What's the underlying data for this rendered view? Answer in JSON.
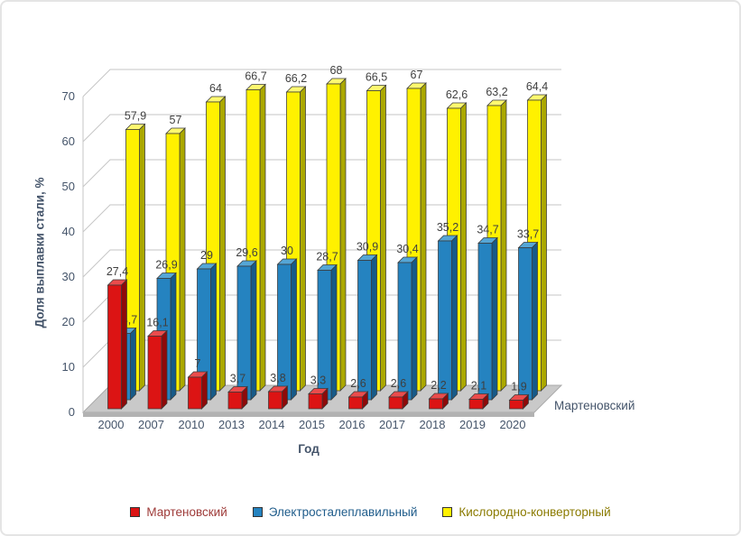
{
  "style": {
    "axis_text_color": "#44546A",
    "data_label_color": "#3F3F3F",
    "grid_color": "#C6C6C6",
    "floor_color": "#C9C9C9",
    "floor_edge_color": "#A9A9A9",
    "floor_front_color": "#B2B2B2",
    "bar_outline_color": "#3A3A3A"
  },
  "chart_data": {
    "type": "bar",
    "projection": "3d-clustered-column",
    "title": "",
    "xlabel": "Год",
    "ylabel": "Доля выплавки стали, %",
    "ylim": [
      0,
      70
    ],
    "ytick_step": 10,
    "yticks": [
      0,
      10,
      20,
      30,
      40,
      50,
      60,
      70
    ],
    "decimal_separator": ",",
    "grid": true,
    "legend_position": "bottom",
    "depth_axis_label": "Мартеновский",
    "categories": [
      "2000",
      "2007",
      "2010",
      "2013",
      "2014",
      "2015",
      "2016",
      "2017",
      "2018",
      "2019",
      "2020"
    ],
    "series": [
      {
        "name": "Мартеновский",
        "values": [
          27.4,
          16.1,
          7,
          3.7,
          3.8,
          3.3,
          2.6,
          2.6,
          2.2,
          2.1,
          1.9
        ],
        "color_front": "#DC1414",
        "color_top": "#EA4C4C",
        "color_side": "#8E0A0A",
        "legend_text_color": "#9E3A38"
      },
      {
        "name": "Электросталеплавильный",
        "values": [
          14.7,
          26.9,
          29,
          29.6,
          30,
          28.7,
          30.9,
          30.4,
          35.2,
          34.7,
          33.7
        ],
        "color_front": "#2583C0",
        "color_top": "#55A6D6",
        "color_side": "#175A88",
        "legend_text_color": "#1F5C8B"
      },
      {
        "name": "Кислородно-конверторный",
        "values": [
          57.9,
          57,
          64,
          66.7,
          66.2,
          68,
          66.5,
          67,
          62.6,
          63.2,
          64.4
        ],
        "color_front": "#FFF100",
        "color_top": "#FFF970",
        "color_side": "#ABA800",
        "legend_text_color": "#8A7A00"
      }
    ]
  }
}
